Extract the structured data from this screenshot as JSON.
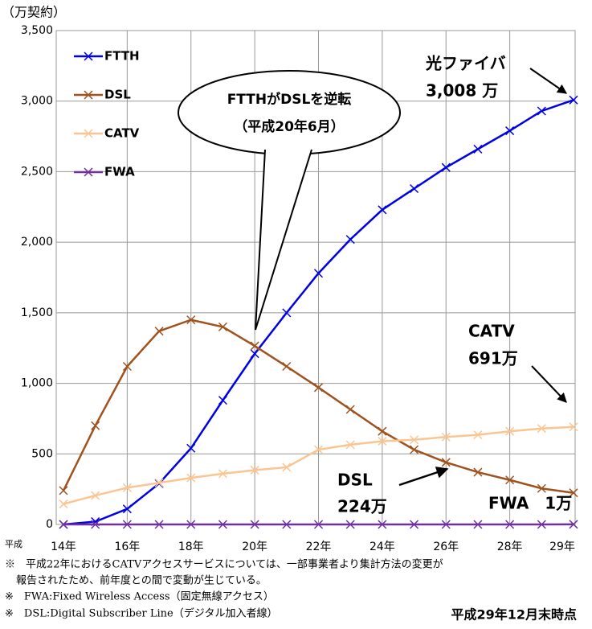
{
  "chart_data": {
    "type": "line",
    "y_unit": "（万契約）",
    "x_prefix": "平成",
    "categories": [
      "14年",
      null,
      "16年",
      null,
      "18年",
      null,
      "20年",
      null,
      "22年",
      null,
      "24年",
      null,
      "26年",
      null,
      "28年",
      null,
      "29年"
    ],
    "series": [
      {
        "name": "FTTH",
        "color": "#0000e6",
        "values": [
          0,
          20,
          110,
          290,
          540,
          880,
          1210,
          1500,
          1780,
          2020,
          2230,
          2380,
          2530,
          2660,
          2790,
          2930,
          3008
        ]
      },
      {
        "name": "DSL",
        "color": "#a0521e",
        "values": [
          240,
          700,
          1120,
          1370,
          1450,
          1400,
          1265,
          1120,
          970,
          815,
          660,
          530,
          440,
          370,
          315,
          255,
          224
        ]
      },
      {
        "name": "CATV",
        "color": "#fbc592",
        "values": [
          145,
          205,
          260,
          295,
          330,
          360,
          385,
          405,
          530,
          565,
          590,
          600,
          620,
          635,
          660,
          680,
          691
        ]
      },
      {
        "name": "FWA",
        "color": "#7030a0",
        "values": [
          0,
          0,
          0,
          0,
          0,
          0,
          0,
          0,
          0,
          0,
          0,
          0,
          0,
          0,
          0,
          0,
          1
        ]
      }
    ],
    "ylim": [
      0,
      3500
    ],
    "yticks": [
      0,
      500,
      {
        "value": 1000,
        "label": "1,000"
      },
      {
        "value": 1500,
        "label": "1,500"
      },
      {
        "value": 2000,
        "label": "2,000"
      },
      {
        "value": 2500,
        "label": "2,500"
      },
      {
        "value": 3000,
        "label": "3,000"
      },
      {
        "value": 3500,
        "label": "3,500"
      }
    ],
    "grid": true,
    "legend": "upper left",
    "annotations": {
      "bubble": [
        "FTTHがDSLを逆転",
        "（平成20年6月）"
      ],
      "ftth": [
        "光ファイバ",
        "3,008 万"
      ],
      "catv": [
        "CATV",
        "691万"
      ],
      "dsl": [
        "DSL",
        "224万"
      ],
      "fwa": "FWA　1万"
    },
    "notes": [
      "※　平成22年におけるCATVアクセスサービスについては、一部事業者より集計方法の変更が",
      "報告されたため、前年度との間で変動が生じている。",
      "※　FWA:Fixed Wireless Access（固定無線アクセス）",
      "※　DSL:Digital Subscriber Line（デジタル加入者線）"
    ],
    "as_of": "平成29年12月末時点"
  }
}
